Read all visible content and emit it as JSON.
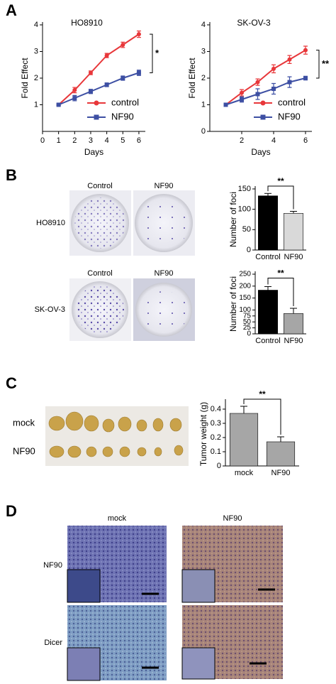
{
  "panel_labels": [
    "A",
    "B",
    "C",
    "D"
  ],
  "panel_b_photos": {
    "rows": [
      {
        "label": "HO8910",
        "columns": [
          "Control",
          "NF90"
        ]
      },
      {
        "label": "SK-OV-3",
        "columns": [
          "Control",
          "NF90"
        ]
      }
    ]
  },
  "panel_c_photo": {
    "rows": [
      "mock",
      "NF90"
    ]
  },
  "panel_d_photos": {
    "columns": [
      "mock",
      "NF90"
    ],
    "rows": [
      "NF90",
      "Dicer"
    ]
  },
  "chart_data": [
    {
      "type": "line",
      "title": "HO8910",
      "x_label": "Days",
      "y_label": "Fold Effect",
      "x": [
        1,
        2,
        3,
        4,
        5,
        6
      ],
      "xlim": [
        0,
        6.4
      ],
      "xticks": [
        0,
        1,
        2,
        3,
        4,
        5,
        6
      ],
      "ylim": [
        0,
        4
      ],
      "yticks": [
        1,
        2,
        3,
        4
      ],
      "annotation": "*",
      "legend": "lower right",
      "series": [
        {
          "name": "control",
          "color": "#e8373a",
          "marker": "circle",
          "values": [
            1,
            1.55,
            2.2,
            2.85,
            3.25,
            3.65
          ],
          "errors": [
            0.03,
            0.1,
            0.07,
            0.08,
            0.1,
            0.12
          ]
        },
        {
          "name": "NF90",
          "color": "#3d4fa3",
          "marker": "square",
          "values": [
            1,
            1.25,
            1.5,
            1.75,
            2.0,
            2.2
          ],
          "errors": [
            0.03,
            0.1,
            0.08,
            0.07,
            0.08,
            0.1
          ]
        }
      ]
    },
    {
      "type": "line",
      "title": "SK-OV-3",
      "x_label": "Days",
      "y_label": "Fold Effect",
      "x": [
        1,
        2,
        3,
        4,
        5,
        6
      ],
      "xlim": [
        0,
        6.4
      ],
      "xticks": [
        2,
        4,
        6
      ],
      "ylim": [
        0,
        4
      ],
      "yticks": [
        0,
        1,
        2,
        3,
        4
      ],
      "annotation": "**",
      "legend": "lower right",
      "series": [
        {
          "name": "control",
          "color": "#e8373a",
          "marker": "circle",
          "values": [
            1,
            1.45,
            1.85,
            2.35,
            2.7,
            3.05
          ],
          "errors": [
            0.03,
            0.12,
            0.12,
            0.15,
            0.15,
            0.15
          ]
        },
        {
          "name": "NF90",
          "color": "#3d4fa3",
          "marker": "square",
          "values": [
            1,
            1.2,
            1.4,
            1.6,
            1.85,
            2.0
          ],
          "errors": [
            0.03,
            0.1,
            0.2,
            0.2,
            0.2,
            0.07
          ]
        }
      ]
    },
    {
      "type": "bar",
      "y_label": "Number of foci",
      "categories": [
        "Control",
        "NF90"
      ],
      "values": [
        133,
        90
      ],
      "errors": [
        6,
        5
      ],
      "colors": [
        "#000000",
        "#d9d9d9"
      ],
      "ylim": [
        0,
        150
      ],
      "yticks": [
        0,
        50,
        100,
        150
      ],
      "annotation": "**"
    },
    {
      "type": "bar",
      "y_label": "Number of foci",
      "categories": [
        "Control",
        "NF90"
      ],
      "values": [
        183,
        85
      ],
      "errors": [
        15,
        22
      ],
      "colors": [
        "#000000",
        "#a6a6a6"
      ],
      "ylim": [
        0,
        250
      ],
      "yticks": [
        0,
        25,
        50,
        75,
        100,
        150,
        200,
        250
      ],
      "annotation": "**"
    },
    {
      "type": "bar",
      "y_label": "Tumor weight (g)",
      "categories": [
        "mock",
        "NF90"
      ],
      "values": [
        0.37,
        0.17
      ],
      "errors": [
        0.05,
        0.035
      ],
      "colors": [
        "#a6a6a6",
        "#a6a6a6"
      ],
      "ylim": [
        0,
        0.45
      ],
      "yticks": [
        0,
        0.1,
        0.2,
        0.3,
        0.4
      ],
      "annotation": "**"
    }
  ]
}
